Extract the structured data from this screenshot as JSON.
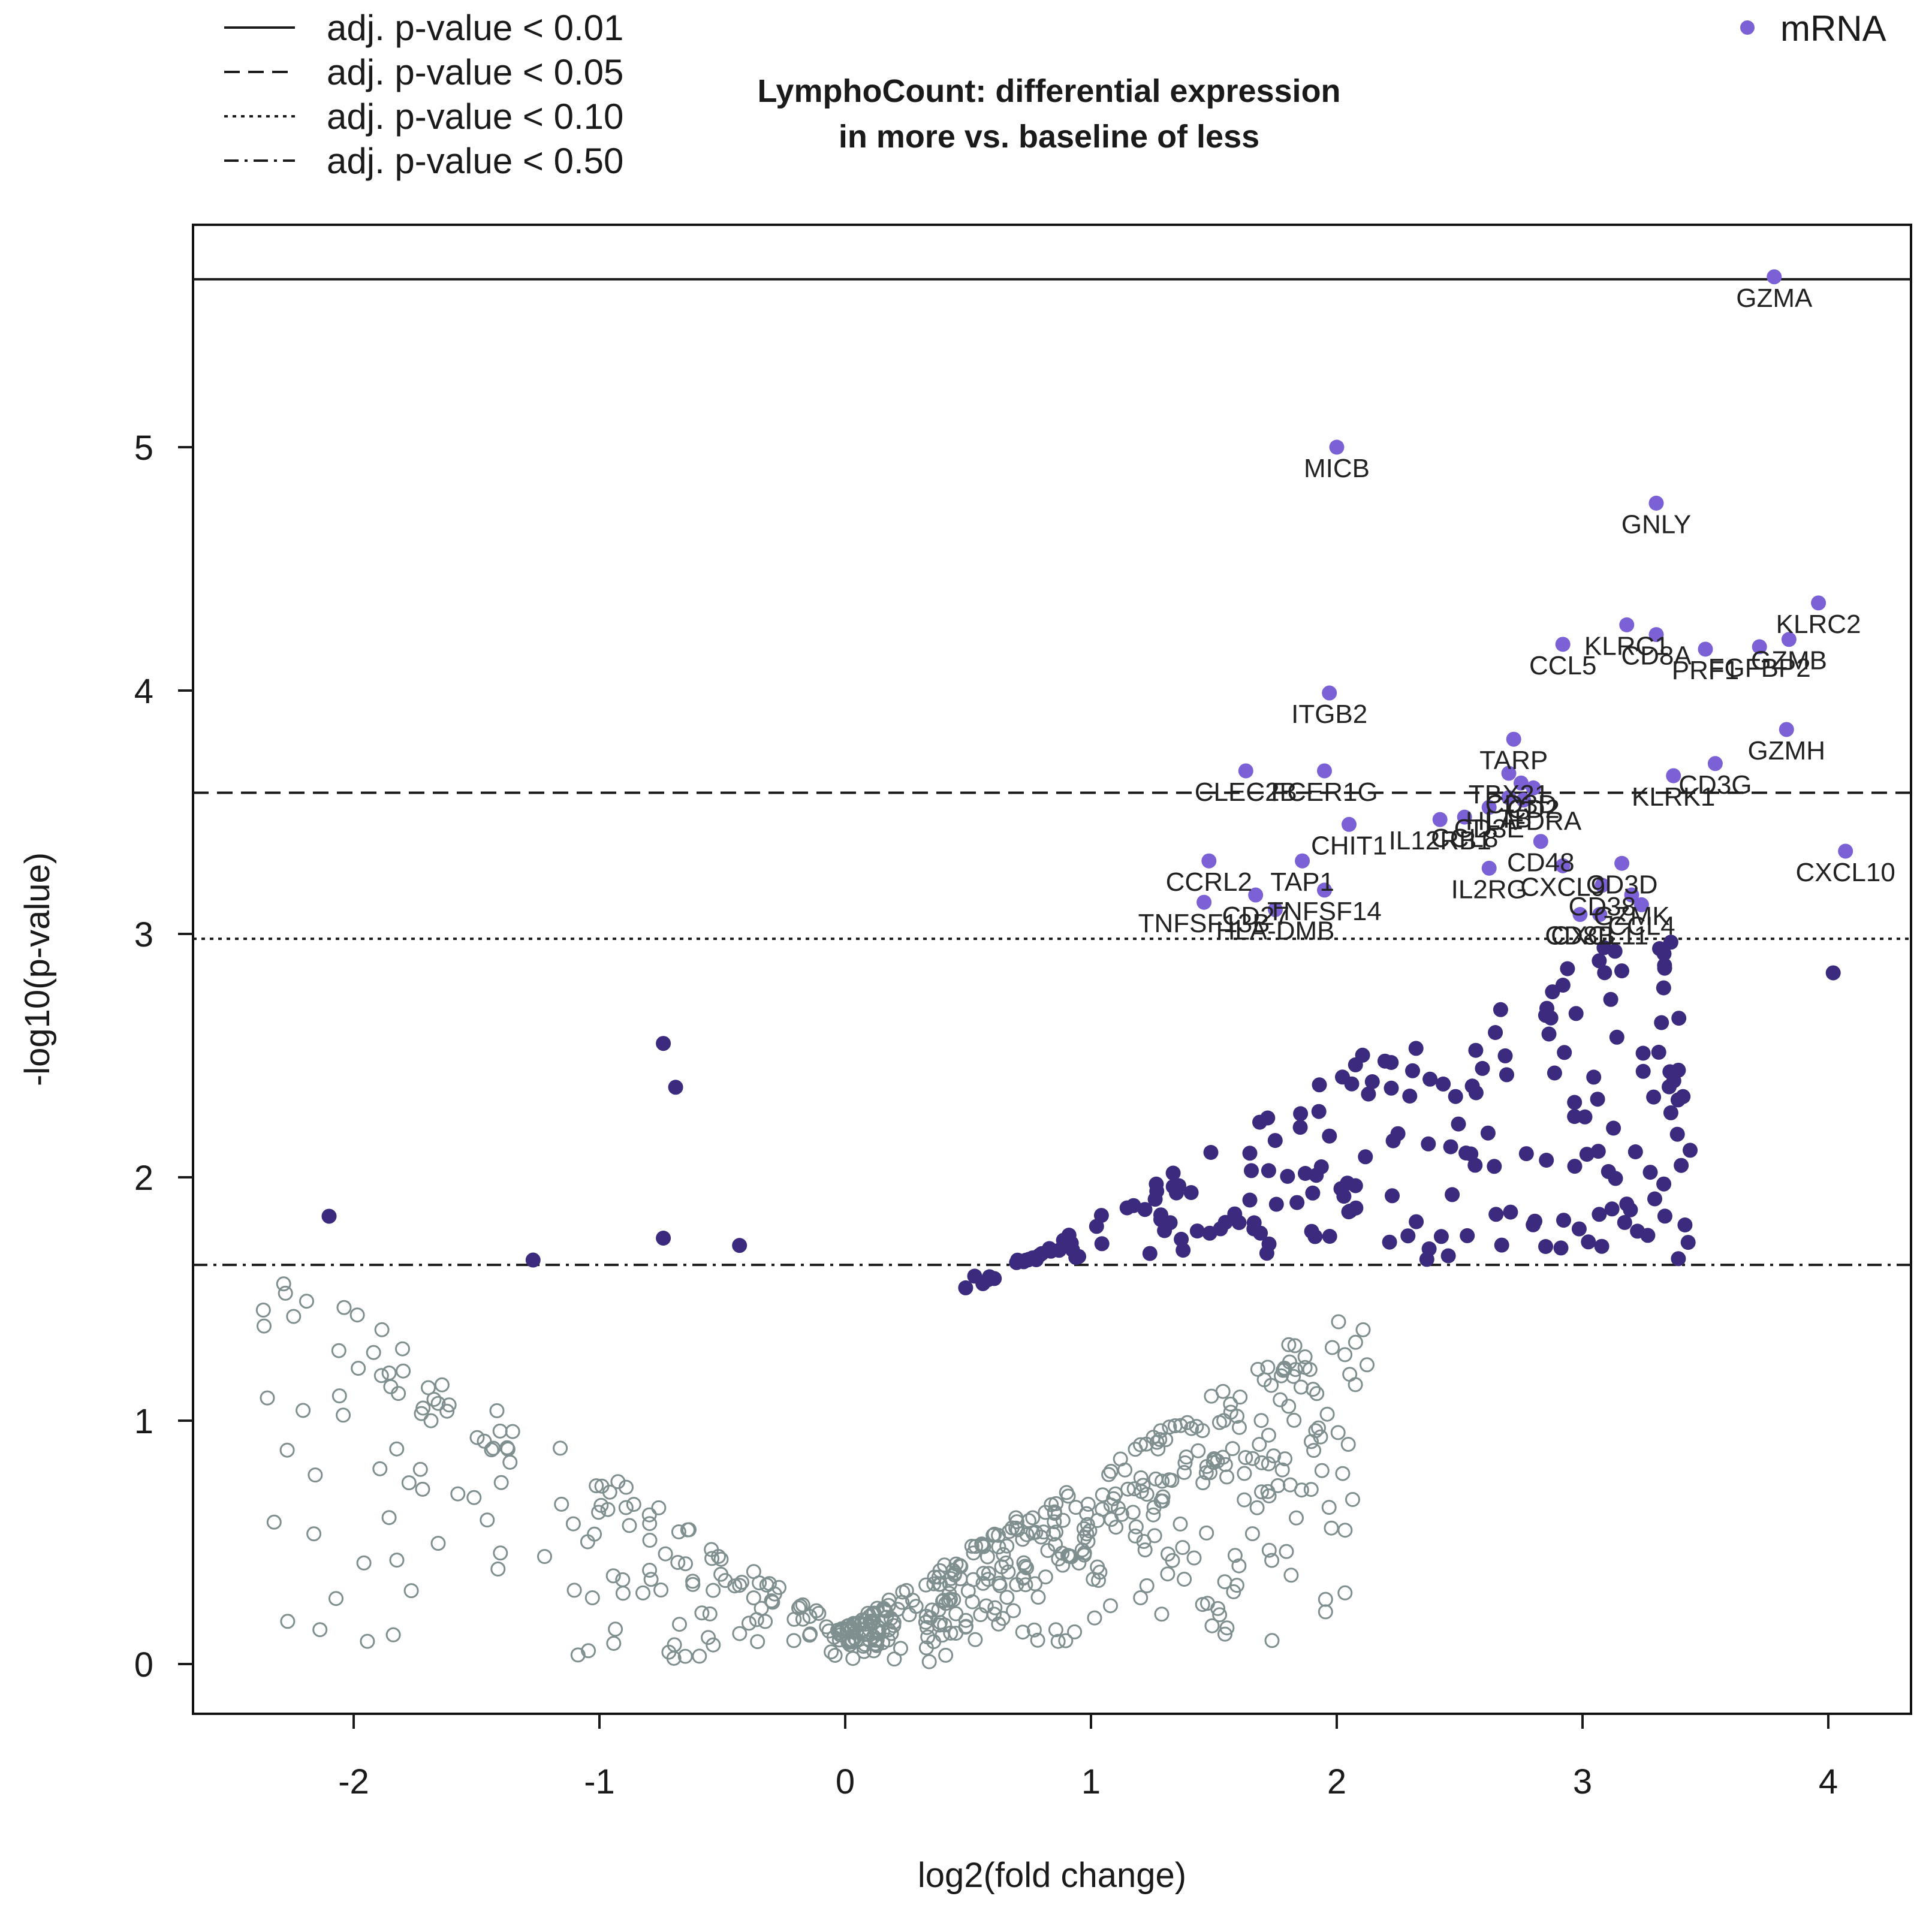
{
  "colors": {
    "significant": "#3b2a7d",
    "labeled": "#7b60d6",
    "nonsignificant": "#7f8f8f",
    "lines": "#1a1a1a"
  },
  "legend": {
    "lines": [
      {
        "label": "adj. p-value < 0.01",
        "style": "solid"
      },
      {
        "label": "adj. p-value < 0.05",
        "style": "dashed"
      },
      {
        "label": "adj. p-value < 0.10",
        "style": "dotted"
      },
      {
        "label": "adj. p-value < 0.50",
        "style": "dotdash"
      }
    ],
    "marker_label": "mRNA"
  },
  "chart_data": {
    "type": "scatter",
    "title": "LymphoCount: differential expression\nin more vs. baseline of less",
    "xlabel": "log2(fold change)",
    "ylabel": "-log10(p-value)",
    "xlim": [
      -2.6,
      4.35
    ],
    "ylim": [
      -0.2,
      5.9
    ],
    "xticks": [
      -2,
      -1,
      0,
      1,
      2,
      3,
      4
    ],
    "yticks": [
      0,
      1,
      2,
      3,
      4,
      5
    ],
    "thresholds": [
      {
        "label": "adj. p-value < 0.01",
        "y": 5.69,
        "style": "solid"
      },
      {
        "label": "adj. p-value < 0.05",
        "y": 3.58,
        "style": "dashed"
      },
      {
        "label": "adj. p-value < 0.10",
        "y": 2.98,
        "style": "dotted"
      },
      {
        "label": "adj. p-value < 0.50",
        "y": 1.64,
        "style": "dotdash"
      }
    ],
    "labeled_genes": [
      {
        "name": "GZMA",
        "x": 3.78,
        "y": 5.7
      },
      {
        "name": "MICB",
        "x": 2.0,
        "y": 5.0
      },
      {
        "name": "GNLY",
        "x": 3.3,
        "y": 4.77
      },
      {
        "name": "KLRC2",
        "x": 3.96,
        "y": 4.36
      },
      {
        "name": "KLRC1",
        "x": 3.18,
        "y": 4.27
      },
      {
        "name": "CD8A",
        "x": 3.3,
        "y": 4.23
      },
      {
        "name": "CCL5",
        "x": 2.92,
        "y": 4.19
      },
      {
        "name": "PRF1",
        "x": 3.5,
        "y": 4.17
      },
      {
        "name": "GZMB",
        "x": 3.84,
        "y": 4.21
      },
      {
        "name": "FGFBP2",
        "x": 3.72,
        "y": 4.18
      },
      {
        "name": "ITGB2",
        "x": 1.97,
        "y": 3.99
      },
      {
        "name": "GZMH",
        "x": 3.83,
        "y": 3.84
      },
      {
        "name": "TARP",
        "x": 2.72,
        "y": 3.8
      },
      {
        "name": "CD3G",
        "x": 3.54,
        "y": 3.7
      },
      {
        "name": "TBX21",
        "x": 2.7,
        "y": 3.66
      },
      {
        "name": "KLRK1",
        "x": 3.37,
        "y": 3.65
      },
      {
        "name": "CLEC2B",
        "x": 1.63,
        "y": 3.67
      },
      {
        "name": "FCER1G",
        "x": 1.95,
        "y": 3.67
      },
      {
        "name": "CD3D",
        "x": 2.75,
        "y": 3.62
      },
      {
        "name": "CD2",
        "x": 2.8,
        "y": 3.6
      },
      {
        "name": "CHIT1",
        "x": 2.05,
        "y": 3.45
      },
      {
        "name": "IL12RB1",
        "x": 2.42,
        "y": 3.47
      },
      {
        "name": "CD3E",
        "x": 2.62,
        "y": 3.52
      },
      {
        "name": "LTB",
        "x": 2.7,
        "y": 3.56
      },
      {
        "name": "HLA-DRA",
        "x": 2.76,
        "y": 3.55
      },
      {
        "name": "CD48",
        "x": 2.83,
        "y": 3.38
      },
      {
        "name": "CCL8",
        "x": 2.52,
        "y": 3.48
      },
      {
        "name": "CXCL10",
        "x": 4.07,
        "y": 3.34
      },
      {
        "name": "CCRL2",
        "x": 1.48,
        "y": 3.3
      },
      {
        "name": "TAP1",
        "x": 1.86,
        "y": 3.3
      },
      {
        "name": "IL2RG",
        "x": 2.62,
        "y": 3.27
      },
      {
        "name": "CXCL9",
        "x": 2.92,
        "y": 3.28
      },
      {
        "name": "CD3D",
        "x": 3.16,
        "y": 3.29
      },
      {
        "name": "CD27",
        "x": 1.67,
        "y": 3.16
      },
      {
        "name": "TNFSF14",
        "x": 1.95,
        "y": 3.18
      },
      {
        "name": "CD38",
        "x": 3.08,
        "y": 3.2
      },
      {
        "name": "GZMK",
        "x": 3.2,
        "y": 3.16
      },
      {
        "name": "CCL4",
        "x": 3.24,
        "y": 3.12
      },
      {
        "name": "TNFSF13B",
        "x": 1.46,
        "y": 3.13
      },
      {
        "name": "HLA-DMB",
        "x": 1.75,
        "y": 3.1
      },
      {
        "name": "CD8B",
        "x": 2.99,
        "y": 3.08
      },
      {
        "name": "CXCL11",
        "x": 3.07,
        "y": 3.08
      }
    ]
  }
}
